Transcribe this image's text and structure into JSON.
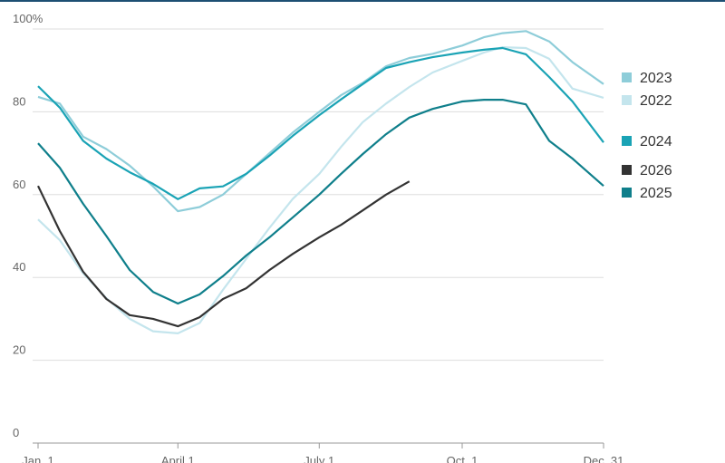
{
  "chart_data": {
    "type": "line",
    "x": [
      1,
      15,
      30,
      45,
      60,
      75,
      91,
      105,
      120,
      135,
      150,
      165,
      182,
      196,
      210,
      225,
      240,
      255,
      274,
      288,
      300,
      315,
      330,
      345,
      365
    ],
    "xlim": [
      1,
      365
    ],
    "xticks": [
      {
        "value": 1,
        "label": "Jan. 1"
      },
      {
        "value": 91,
        "label": "April 1"
      },
      {
        "value": 182,
        "label": "July 1"
      },
      {
        "value": 274,
        "label": "Oct. 1"
      },
      {
        "value": 365,
        "label": "Dec. 31"
      }
    ],
    "ylim": [
      0,
      100
    ],
    "yticks": [
      0,
      20,
      40,
      60,
      80,
      {
        "value": 100,
        "label": "100%"
      }
    ],
    "grid": true,
    "series": [
      {
        "name": "2023",
        "color": "#8ecdd9",
        "values": [
          83.6,
          82,
          74,
          71,
          67,
          62,
          56,
          57,
          60,
          65,
          70,
          75,
          80,
          84,
          87,
          91,
          93,
          94,
          96,
          98,
          99,
          99.5,
          97,
          92,
          86.7
        ]
      },
      {
        "name": "2022",
        "color": "#c4e5ed",
        "values": [
          54,
          49,
          41,
          35,
          30,
          27,
          26.5,
          29,
          37,
          44.5,
          52,
          59,
          65,
          71.5,
          77.5,
          82,
          86,
          89.5,
          92.3,
          94.3,
          95.6,
          95.4,
          92.8,
          85.6,
          83.4
        ]
      },
      {
        "name": "2024",
        "color": "#1aa3b5",
        "values": [
          86.2,
          81,
          73,
          68.7,
          65.4,
          62.6,
          58.9,
          61.5,
          62,
          65,
          69.4,
          74.2,
          79.2,
          83,
          86.7,
          90.6,
          92,
          93.2,
          94.3,
          95,
          95.4,
          93.9,
          88.4,
          82.5,
          72.6
        ]
      },
      {
        "name": "2026",
        "color": "#333333",
        "values": [
          62.1,
          51.2,
          41.4,
          34.8,
          30.9,
          30,
          28.2,
          30.4,
          34.8,
          37.4,
          41.8,
          45.7,
          49.7,
          52.7,
          56.2,
          60,
          63.2,
          null,
          null,
          null,
          null,
          null,
          null,
          null,
          null
        ]
      },
      {
        "name": "2025",
        "color": "#0f7f8b",
        "values": [
          72.4,
          66.5,
          57.8,
          50,
          41.8,
          36.5,
          33.7,
          35.9,
          40.3,
          45.3,
          49.7,
          54.5,
          60,
          65,
          69.8,
          74.6,
          78.6,
          80.7,
          82.5,
          82.9,
          82.9,
          81.8,
          73,
          68.7,
          62.1
        ]
      }
    ]
  }
}
